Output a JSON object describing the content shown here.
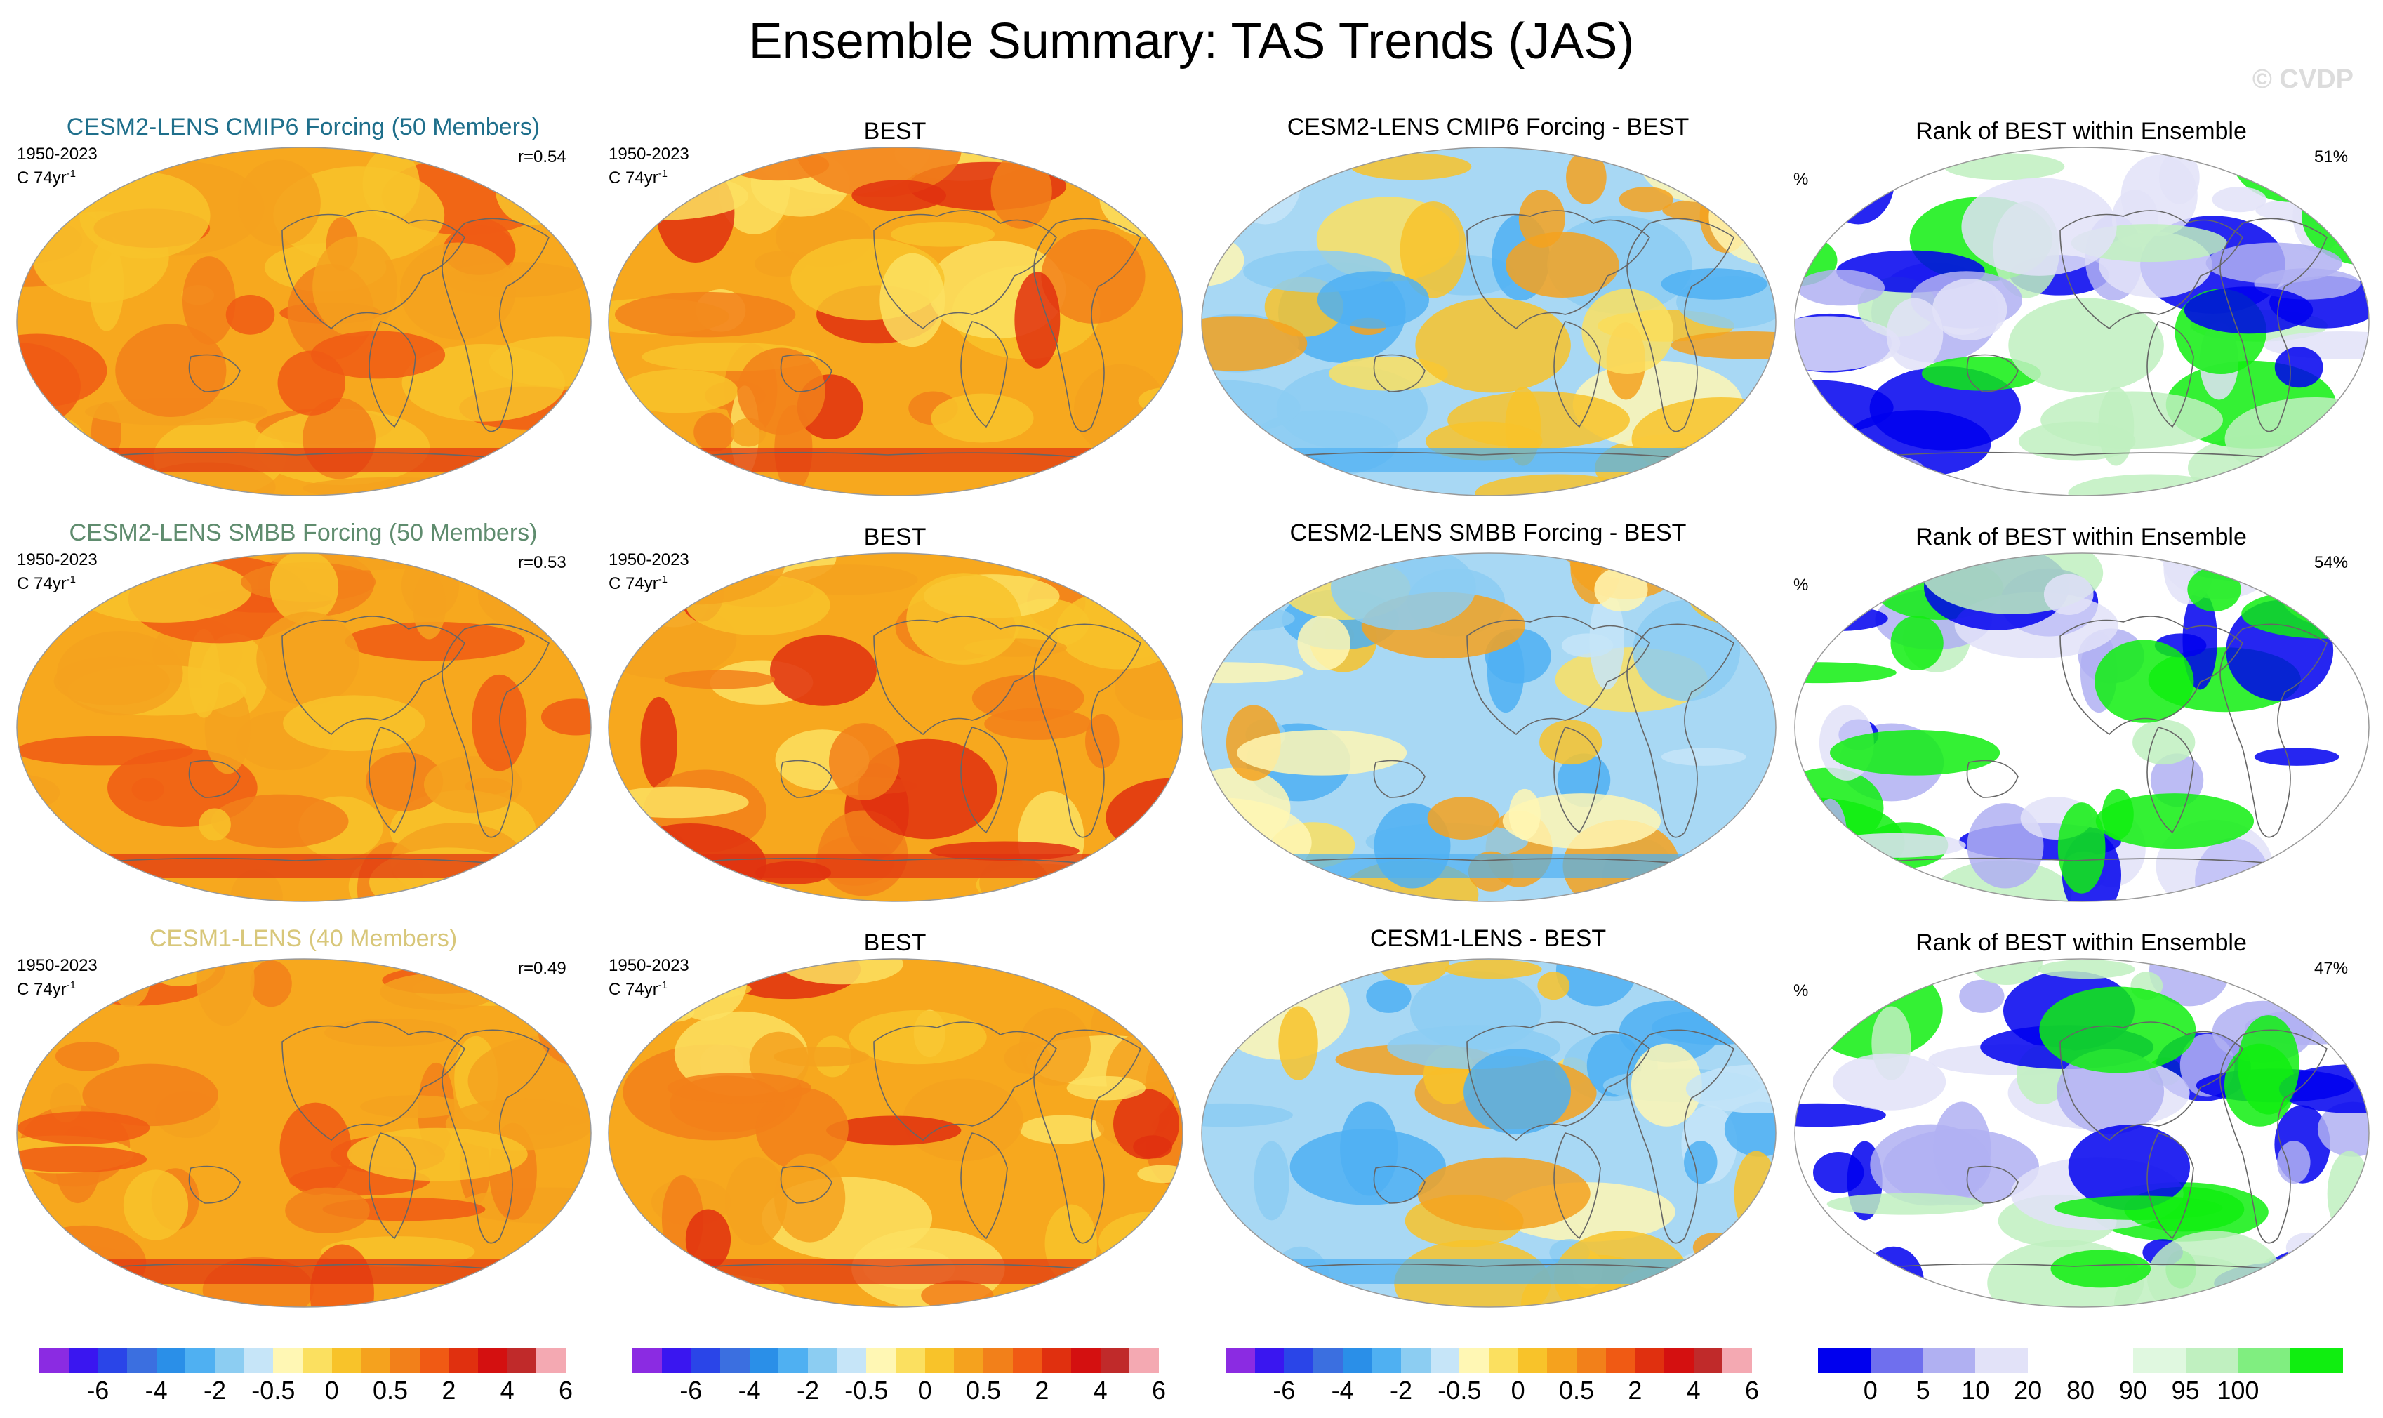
{
  "figure": {
    "title": "Ensemble Summary: TAS Trends (JAS)",
    "watermark": "© CVDP"
  },
  "rows": [
    {
      "model_title": "CESM2-LENS CMIP6 Forcing (50 Members)",
      "model_title_color": "#1f6f8b",
      "period": "1950-2023",
      "units_base": "C 74yr",
      "units_exp": "-1",
      "r_value": "r=0.54",
      "obs_title": "BEST",
      "diff_title": "CESM2-LENS CMIP6 Forcing - BEST",
      "rank_title": "Rank of BEST within Ensemble",
      "rank_percent": "51%",
      "rank_symbol": "%"
    },
    {
      "model_title": "CESM2-LENS SMBB Forcing (50 Members)",
      "model_title_color": "#5f8c6e",
      "period": "1950-2023",
      "units_base": "C 74yr",
      "units_exp": "-1",
      "r_value": "r=0.53",
      "obs_title": "BEST",
      "diff_title": "CESM2-LENS SMBB Forcing - BEST",
      "rank_title": "Rank of BEST within Ensemble",
      "rank_percent": "54%",
      "rank_symbol": "%"
    },
    {
      "model_title": "CESM1-LENS (40 Members)",
      "model_title_color": "#d8c77a",
      "period": "1950-2023",
      "units_base": "C 74yr",
      "units_exp": "-1",
      "r_value": "r=0.49",
      "obs_title": "BEST",
      "diff_title": "CESM1-LENS - BEST",
      "rank_title": "Rank of BEST within Ensemble",
      "rank_percent": "47%",
      "rank_symbol": "%"
    }
  ],
  "colorbars": {
    "trend_colors": [
      "#8b2be2",
      "#3a16f0",
      "#2a45e8",
      "#3b6fe0",
      "#2a8fe8",
      "#4fb0f2",
      "#8ccdf2",
      "#c6e5f8",
      "#fff7b4",
      "#fbe060",
      "#f8c32a",
      "#f5a21e",
      "#f2801a",
      "#f05a14",
      "#e0300f",
      "#d41010",
      "#c02a2a",
      "#f4a9b2"
    ],
    "trend_ticks": [
      "-6",
      "-4",
      "-2",
      "-0.5",
      "0",
      "0.5",
      "2",
      "4",
      "6"
    ],
    "rank_colors": [
      "#0000ee",
      "#6f6fee",
      "#b0b0f2",
      "#e2e2f8",
      "#ffffff",
      "#ffffff",
      "#e0f8e0",
      "#c0f0c0",
      "#80ee80",
      "#10ee10"
    ],
    "rank_ticks": [
      "0",
      "5",
      "10",
      "20",
      "80",
      "90",
      "95",
      "100"
    ]
  },
  "palette": {
    "model_base": "#f7a81e",
    "model_warm": "#f2801a",
    "obs_base": "#f7a81e",
    "diff_base": "#a8d8f4",
    "rank_base": "#ffffff",
    "land_line": "#666666"
  }
}
